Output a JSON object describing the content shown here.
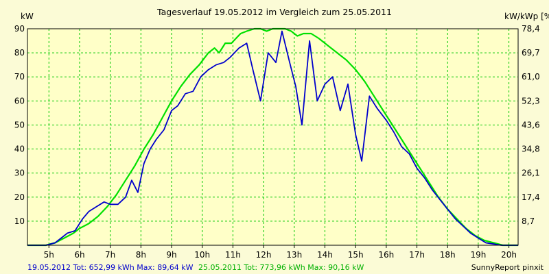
{
  "chart_data": {
    "type": "line",
    "title": "Tagesverlauf 19.05.2012 im Vergleich zum 25.05.2011",
    "ylabel_left": "kW",
    "ylabel_right": "kW/kWp [%]",
    "footer_right": "SunnyReport pinxit",
    "xlim": [
      4.3,
      20.3
    ],
    "ylim": [
      0,
      90
    ],
    "x_ticks": [
      5,
      6,
      7,
      8,
      9,
      10,
      11,
      12,
      13,
      14,
      15,
      16,
      17,
      18,
      19,
      20
    ],
    "x_tick_labels": [
      "5h",
      "6h",
      "7h",
      "8h",
      "9h",
      "10h",
      "11h",
      "12h",
      "13h",
      "14h",
      "15h",
      "16h",
      "17h",
      "18h",
      "19h",
      "20h"
    ],
    "y_ticks": [
      10,
      20,
      30,
      40,
      50,
      60,
      70,
      80,
      90
    ],
    "y_tick_labels": [
      "10",
      "20",
      "30",
      "40",
      "50",
      "60",
      "70",
      "80",
      "90"
    ],
    "y_right_ticks": [
      10,
      20,
      30,
      40,
      50,
      60,
      70,
      80,
      90
    ],
    "y_right_tick_labels": [
      "8,7",
      "17,4",
      "26,1",
      "34,8",
      "43,6",
      "52,3",
      "61,0",
      "69,7",
      "78,4"
    ],
    "grid": true,
    "colors": {
      "background": "#fbfbd6",
      "plot": "#ffffc8",
      "grid": "#00c800"
    },
    "series": [
      {
        "name": "19.05.2012",
        "legend": "19.05.2012 Tot: 652,99 kWh Max: 89,64 kW",
        "color": "#0000cc",
        "x": [
          4.3,
          4.9,
          5.2,
          5.4,
          5.6,
          5.85,
          6.1,
          6.3,
          6.55,
          6.8,
          7.0,
          7.25,
          7.5,
          7.7,
          7.9,
          8.1,
          8.3,
          8.5,
          8.75,
          9.0,
          9.2,
          9.45,
          9.7,
          9.95,
          10.2,
          10.45,
          10.7,
          10.9,
          11.05,
          11.2,
          11.45,
          11.65,
          11.9,
          12.15,
          12.4,
          12.6,
          12.85,
          13.05,
          13.25,
          13.5,
          13.75,
          14.0,
          14.25,
          14.5,
          14.75,
          15.0,
          15.2,
          15.45,
          15.7,
          16.0,
          16.25,
          16.5,
          16.75,
          17.0,
          17.25,
          17.5,
          17.75,
          18.0,
          18.25,
          18.5,
          18.75,
          19.0,
          19.25,
          19.5,
          19.75,
          20.3
        ],
        "y": [
          0,
          0,
          1,
          3,
          5,
          6,
          11,
          14,
          16,
          18,
          17,
          17,
          20,
          27,
          22,
          34,
          40,
          44,
          48,
          56,
          58,
          63,
          64,
          70,
          73,
          75,
          76,
          78,
          80,
          82,
          84,
          73,
          60,
          80,
          76,
          89,
          76,
          66,
          50,
          85,
          60,
          67,
          70,
          56,
          67,
          46,
          35,
          62,
          57,
          52,
          47,
          41,
          38,
          32,
          28,
          23,
          19,
          15,
          11,
          8,
          5,
          3,
          1,
          0.5,
          0,
          0
        ],
        "x_unit": "h",
        "y_unit": "kW"
      },
      {
        "name": "25.05.2011",
        "legend": "25.05.2011 Tot: 773,96 kWh Max: 90,16 kW",
        "color": "#00e000",
        "x": [
          4.3,
          4.9,
          5.2,
          5.5,
          5.8,
          6.0,
          6.3,
          6.6,
          6.9,
          7.2,
          7.5,
          7.8,
          8.1,
          8.4,
          8.7,
          9.0,
          9.3,
          9.6,
          9.9,
          10.2,
          10.4,
          10.55,
          10.75,
          10.95,
          11.1,
          11.25,
          11.45,
          11.7,
          11.9,
          12.1,
          12.3,
          12.5,
          12.7,
          12.9,
          13.1,
          13.3,
          13.55,
          13.8,
          14.1,
          14.4,
          14.7,
          15.0,
          15.3,
          15.6,
          15.9,
          16.2,
          16.5,
          16.8,
          17.1,
          17.4,
          17.7,
          18.0,
          18.3,
          18.6,
          18.9,
          19.2,
          19.5,
          19.8,
          20.3
        ],
        "y": [
          0,
          0,
          1,
          3,
          5,
          7,
          9,
          12,
          16,
          21,
          27,
          33,
          40,
          46,
          53,
          60,
          66,
          71,
          75,
          80,
          82,
          80,
          84,
          84,
          86,
          88,
          89,
          90,
          90,
          89,
          90,
          90,
          90,
          89,
          87,
          88,
          88,
          86,
          83,
          80,
          77,
          73,
          68,
          62,
          56,
          50,
          44,
          38,
          32,
          26,
          20,
          15,
          11,
          7,
          4,
          2,
          1,
          0,
          0
        ],
        "x_unit": "h",
        "y_unit": "kW"
      }
    ]
  }
}
